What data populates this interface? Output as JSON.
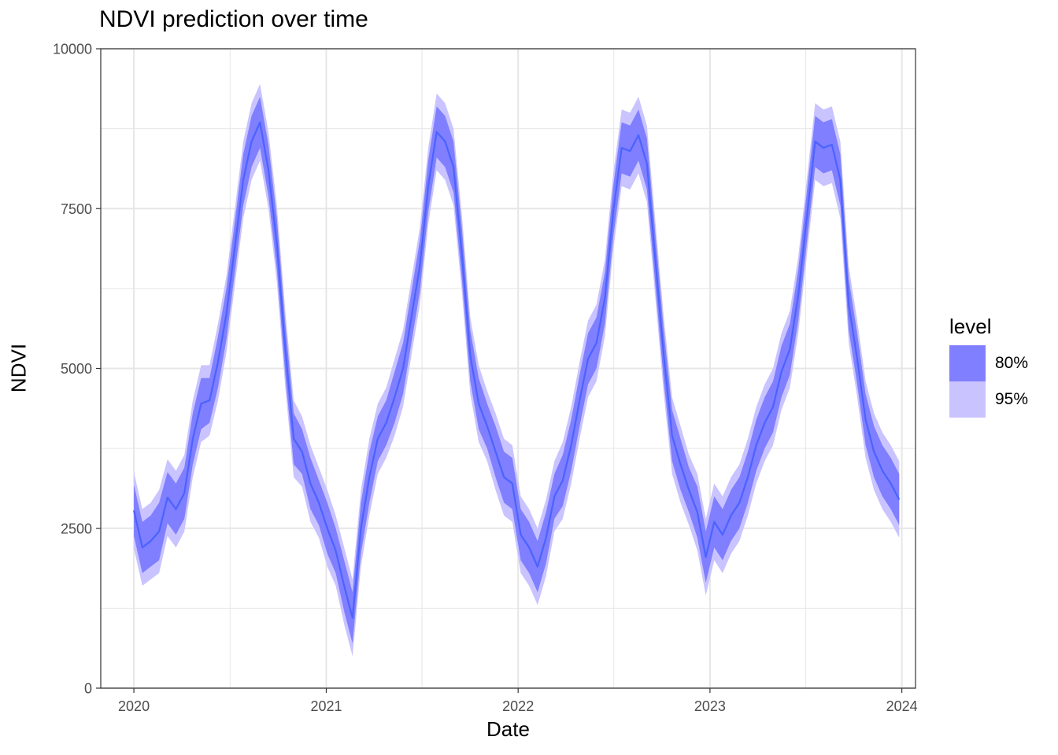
{
  "chart_data": {
    "type": "area",
    "title": "NDVI prediction over time",
    "xlabel": "Date",
    "ylabel": "NDVI",
    "xlim": [
      "2019-10-30",
      "2024-01-27"
    ],
    "ylim": [
      0,
      10000
    ],
    "x_ticks": [
      "2020",
      "2021",
      "2022",
      "2023",
      "2024"
    ],
    "y_ticks": [
      0,
      2500,
      5000,
      7500,
      10000
    ],
    "grid": true,
    "legend": {
      "title": "level",
      "position": "right",
      "entries": [
        "80%",
        "95%"
      ]
    },
    "colors": {
      "line": "#4a63ff",
      "band_80": "#7f7fff",
      "band_95": "#c9c4ff",
      "grid": "#e6e6e6",
      "panel_border": "#333333"
    },
    "series": [
      {
        "x": [
          "2020-01-01",
          "2020-01-17",
          "2020-02-02",
          "2020-02-18",
          "2020-03-05",
          "2020-03-21",
          "2020-04-06",
          "2020-04-22",
          "2020-05-08",
          "2020-05-24",
          "2020-06-09",
          "2020-06-25",
          "2020-07-11",
          "2020-07-27",
          "2020-08-12",
          "2020-08-28",
          "2020-09-13",
          "2020-09-29",
          "2020-10-15",
          "2020-10-31",
          "2020-11-16",
          "2020-12-02",
          "2020-12-18",
          "2021-01-03",
          "2021-01-19",
          "2021-02-04",
          "2021-02-20",
          "2021-03-08",
          "2021-03-24",
          "2021-04-09",
          "2021-04-25",
          "2021-05-11",
          "2021-05-27",
          "2021-06-12",
          "2021-06-28",
          "2021-07-14",
          "2021-07-30",
          "2021-08-15",
          "2021-08-31",
          "2021-09-16",
          "2021-10-02",
          "2021-10-18",
          "2021-11-03",
          "2021-11-19",
          "2021-12-05",
          "2021-12-21",
          "2022-01-06",
          "2022-01-22",
          "2022-02-07",
          "2022-02-23",
          "2022-03-11",
          "2022-03-27",
          "2022-04-12",
          "2022-04-28",
          "2022-05-14",
          "2022-05-30",
          "2022-06-15",
          "2022-07-01",
          "2022-07-17",
          "2022-08-02",
          "2022-08-18",
          "2022-09-03",
          "2022-09-19",
          "2022-10-05",
          "2022-10-21",
          "2022-11-06",
          "2022-11-22",
          "2022-12-08",
          "2022-12-24",
          "2023-01-09",
          "2023-01-25",
          "2023-02-10",
          "2023-02-26",
          "2023-03-14",
          "2023-03-30",
          "2023-04-15",
          "2023-05-01",
          "2023-05-17",
          "2023-06-02",
          "2023-06-18",
          "2023-07-04",
          "2023-07-20",
          "2023-08-05",
          "2023-08-21",
          "2023-09-06",
          "2023-09-22",
          "2023-10-08",
          "2023-10-24",
          "2023-11-09",
          "2023-11-25",
          "2023-12-11",
          "2023-12-27"
        ],
        "values": [
          2780,
          2200,
          2300,
          2450,
          2980,
          2800,
          3050,
          3900,
          4450,
          4500,
          5100,
          5850,
          6900,
          7950,
          8550,
          8850,
          8100,
          6950,
          5300,
          3900,
          3700,
          3200,
          2900,
          2500,
          2150,
          1600,
          1100,
          2500,
          3300,
          3900,
          4150,
          4550,
          5000,
          5800,
          6600,
          7850,
          8700,
          8550,
          8150,
          6800,
          5200,
          4450,
          4100,
          3700,
          3300,
          3200,
          2400,
          2200,
          1900,
          2350,
          3000,
          3250,
          3800,
          4500,
          5150,
          5400,
          6100,
          7450,
          8450,
          8400,
          8650,
          8200,
          6700,
          5200,
          3950,
          3500,
          3100,
          2750,
          2050,
          2600,
          2400,
          2700,
          2900,
          3300,
          3800,
          4150,
          4400,
          4950,
          5300,
          6150,
          7350,
          8550,
          8450,
          8500,
          7950,
          6000,
          5150,
          4200,
          3700,
          3400,
          3200,
          2950
        ],
        "lo80": [
          2380,
          1800,
          1900,
          2000,
          2580,
          2400,
          2650,
          3500,
          4050,
          4150,
          4700,
          5450,
          6500,
          7550,
          8150,
          8450,
          7700,
          6550,
          4900,
          3500,
          3350,
          2800,
          2550,
          2100,
          1800,
          1200,
          700,
          2100,
          2900,
          3550,
          3800,
          4150,
          4600,
          5400,
          6200,
          7450,
          8300,
          8150,
          7750,
          6400,
          4800,
          4050,
          3750,
          3300,
          2900,
          2800,
          2000,
          1800,
          1500,
          1950,
          2650,
          2850,
          3400,
          4100,
          4750,
          5000,
          5700,
          7050,
          8050,
          8000,
          8250,
          7800,
          6300,
          4800,
          3550,
          3100,
          2750,
          2350,
          1650,
          2200,
          2000,
          2300,
          2500,
          2900,
          3400,
          3750,
          4000,
          4550,
          4900,
          5750,
          6950,
          8150,
          8050,
          8100,
          7550,
          5600,
          4750,
          3800,
          3300,
          3000,
          2800,
          2550
        ],
        "hi80": [
          3180,
          2600,
          2700,
          2900,
          3380,
          3200,
          3450,
          4300,
          4850,
          4850,
          5500,
          6250,
          7300,
          8350,
          8950,
          9250,
          8500,
          7350,
          5700,
          4300,
          4050,
          3600,
          3250,
          2900,
          2500,
          2000,
          1500,
          2900,
          3700,
          4250,
          4500,
          4950,
          5400,
          6200,
          7000,
          8250,
          9100,
          8950,
          8550,
          7200,
          5600,
          4850,
          4450,
          4100,
          3700,
          3600,
          2800,
          2600,
          2300,
          2750,
          3350,
          3650,
          4200,
          4900,
          5550,
          5800,
          6500,
          7850,
          8850,
          8800,
          9050,
          8600,
          7100,
          5600,
          4350,
          3900,
          3450,
          3150,
          2450,
          3000,
          2800,
          3100,
          3300,
          3700,
          4200,
          4550,
          4800,
          5350,
          5700,
          6550,
          7750,
          8950,
          8850,
          8900,
          8350,
          6400,
          5550,
          4600,
          4100,
          3800,
          3600,
          3350
        ],
        "lo95": [
          2180,
          1600,
          1700,
          1800,
          2380,
          2200,
          2450,
          3300,
          3850,
          3950,
          4500,
          5250,
          6300,
          7350,
          7950,
          8250,
          7500,
          6350,
          4700,
          3300,
          3150,
          2600,
          2350,
          1900,
          1600,
          1000,
          500,
          1900,
          2700,
          3350,
          3600,
          3950,
          4400,
          5200,
          6000,
          7250,
          8100,
          7950,
          7550,
          6200,
          4600,
          3850,
          3550,
          3100,
          2700,
          2600,
          1800,
          1600,
          1300,
          1750,
          2450,
          2650,
          3200,
          3900,
          4550,
          4800,
          5500,
          6850,
          7850,
          7800,
          8050,
          7600,
          6100,
          4600,
          3350,
          2900,
          2550,
          2150,
          1450,
          2000,
          1800,
          2100,
          2300,
          2700,
          3200,
          3550,
          3800,
          4350,
          4700,
          5550,
          6750,
          7950,
          7850,
          7900,
          7350,
          5400,
          4550,
          3600,
          3100,
          2800,
          2600,
          2350
        ],
        "hi95": [
          3380,
          2800,
          2900,
          3100,
          3580,
          3400,
          3650,
          4500,
          5050,
          5050,
          5700,
          6450,
          7500,
          8550,
          9150,
          9450,
          8700,
          7550,
          5900,
          4500,
          4250,
          3800,
          3450,
          3100,
          2700,
          2200,
          1700,
          3100,
          3900,
          4450,
          4700,
          5150,
          5600,
          6400,
          7200,
          8450,
          9300,
          9150,
          8750,
          7400,
          5800,
          5050,
          4650,
          4300,
          3900,
          3800,
          3000,
          2800,
          2500,
          2950,
          3550,
          3850,
          4400,
          5100,
          5750,
          6000,
          6700,
          8050,
          9050,
          9000,
          9250,
          8800,
          7300,
          5800,
          4550,
          4100,
          3650,
          3350,
          2650,
          3200,
          3000,
          3300,
          3500,
          3900,
          4400,
          4750,
          5000,
          5550,
          5900,
          6750,
          7950,
          9150,
          9050,
          9100,
          8550,
          6600,
          5750,
          4800,
          4300,
          4000,
          3800,
          3550
        ]
      }
    ]
  }
}
